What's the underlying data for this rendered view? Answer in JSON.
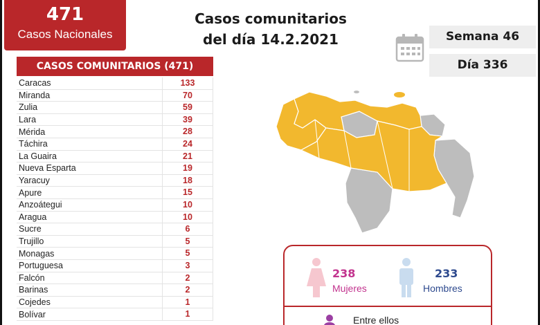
{
  "header": {
    "total_number": "471",
    "total_label": "Casos Nacionales",
    "title_line1": "Casos comunitarios",
    "title_line2": "del día 14.2.2021",
    "semana": "Semana 46",
    "dia": "Día 336"
  },
  "table": {
    "header": "CASOS COMUNITARIOS (471)",
    "rows": [
      {
        "state": "Caracas",
        "value": "133"
      },
      {
        "state": "Miranda",
        "value": "70"
      },
      {
        "state": "Zulia",
        "value": "59"
      },
      {
        "state": "Lara",
        "value": "39"
      },
      {
        "state": "Mérida",
        "value": "28"
      },
      {
        "state": "Táchira",
        "value": "24"
      },
      {
        "state": "La Guaira",
        "value": "21"
      },
      {
        "state": "Nueva Esparta",
        "value": "19"
      },
      {
        "state": "Yaracuy",
        "value": "18"
      },
      {
        "state": "Apure",
        "value": "15"
      },
      {
        "state": "Anzoátegui",
        "value": "10"
      },
      {
        "state": "Aragua",
        "value": "10"
      },
      {
        "state": "Sucre",
        "value": "6"
      },
      {
        "state": "Trujillo",
        "value": "5"
      },
      {
        "state": "Monagas",
        "value": "5"
      },
      {
        "state": "Portuguesa",
        "value": "3"
      },
      {
        "state": "Falcón",
        "value": "2"
      },
      {
        "state": "Barinas",
        "value": "2"
      },
      {
        "state": "Cojedes",
        "value": "1"
      },
      {
        "state": "Bolívar",
        "value": "1"
      }
    ]
  },
  "gender": {
    "women_count": "238",
    "women_label": "Mujeres",
    "men_count": "233",
    "men_label": "Hombres",
    "entre_label": "Entre ellos"
  },
  "colors": {
    "brand_red": "#b9272a",
    "map_affected": "#f2b82e",
    "map_unaffected": "#bdbdbd",
    "women": "#c2338e",
    "men": "#2e4a8e"
  },
  "icons": [
    "calendar-icon",
    "female-icon",
    "male-icon",
    "person-icon"
  ]
}
